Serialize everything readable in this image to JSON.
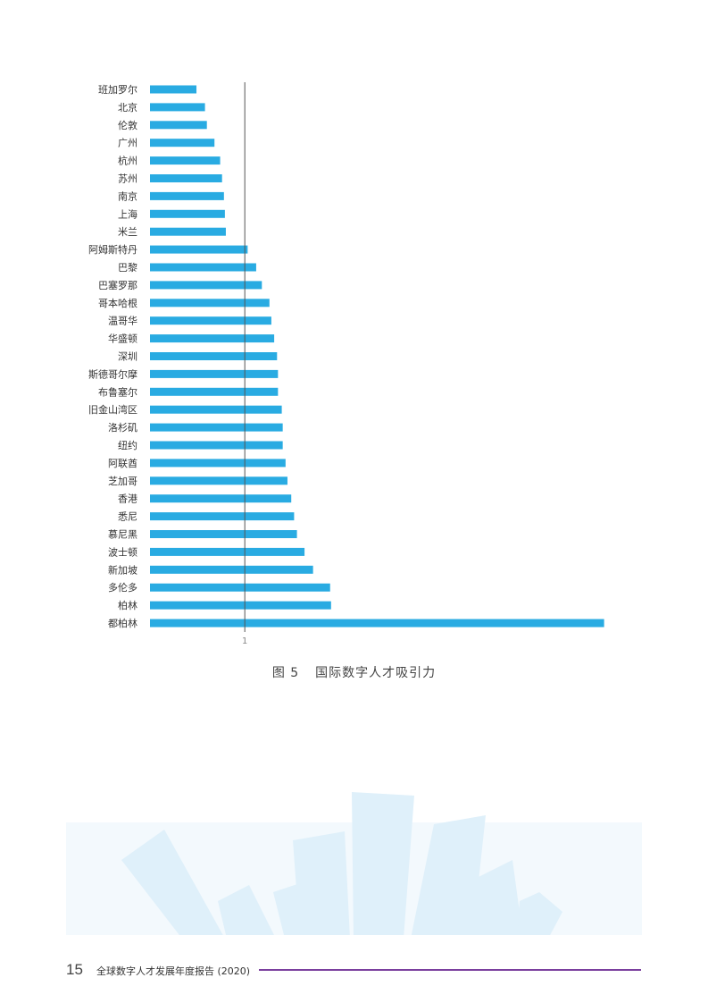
{
  "chart_data": {
    "type": "bar",
    "orientation": "horizontal",
    "categories": [
      "班加罗尔",
      "北京",
      "伦敦",
      "广州",
      "杭州",
      "苏州",
      "南京",
      "上海",
      "米兰",
      "阿姆斯特丹",
      "巴黎",
      "巴塞罗那",
      "哥本哈根",
      "温哥华",
      "华盛顿",
      "深圳",
      "斯德哥尔摩",
      "布鲁塞尔",
      "旧金山湾区",
      "洛杉矶",
      "纽约",
      "阿联酋",
      "芝加哥",
      "香港",
      "悉尼",
      "慕尼黑",
      "波士顿",
      "新加坡",
      "多伦多",
      "柏林",
      "都柏林"
    ],
    "values": [
      0.49,
      0.58,
      0.6,
      0.68,
      0.74,
      0.76,
      0.78,
      0.79,
      0.8,
      1.03,
      1.12,
      1.18,
      1.26,
      1.28,
      1.31,
      1.34,
      1.35,
      1.35,
      1.39,
      1.4,
      1.4,
      1.43,
      1.45,
      1.49,
      1.52,
      1.55,
      1.63,
      1.72,
      1.9,
      1.91,
      4.79
    ],
    "reference_line": 1,
    "xticks": [
      "1"
    ],
    "xlim": [
      0,
      4.85
    ],
    "color": "#29abe2",
    "grid": false,
    "legend": "none"
  },
  "caption": {
    "figure_no": "图 5",
    "title": "国际数字人才吸引力"
  },
  "footer": {
    "page_number": "15",
    "report_title": "全球数字人才发展年度报告 (2020)",
    "rule_color": "#7b3f9e"
  },
  "decoration": {
    "color": "#dff0fa"
  }
}
